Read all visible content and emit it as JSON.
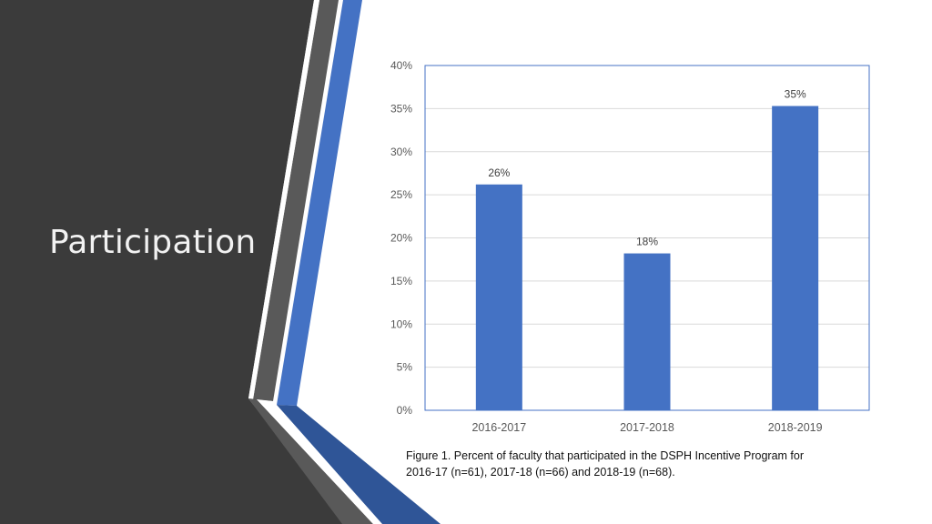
{
  "slide": {
    "title": "Participation"
  },
  "colors": {
    "panel": "#3b3b3b",
    "accent_blue": "#4472c4",
    "dark_blue": "#2f5597",
    "grey_stripe": "#595959",
    "bar": "#4472c4",
    "gridline": "#d9d9d9",
    "plot_border": "#4472c4"
  },
  "chart_data": {
    "type": "bar",
    "categories": [
      "2016-2017",
      "2017-2018",
      "2018-2019"
    ],
    "values": [
      26.2,
      18.2,
      35.3
    ],
    "data_labels": [
      "26%",
      "18%",
      "35%"
    ],
    "ylim": [
      0,
      40
    ],
    "yticks": [
      "0%",
      "5%",
      "10%",
      "15%",
      "20%",
      "25%",
      "30%",
      "35%",
      "40%"
    ],
    "ytick_values": [
      0,
      5,
      10,
      15,
      20,
      25,
      30,
      35,
      40
    ],
    "grid": true,
    "title": "",
    "xlabel": "",
    "ylabel": ""
  },
  "caption": {
    "line1": "Figure 1.  Percent of faculty that participated in the DSPH Incentive Program for",
    "line2": "2016-17 (n=61), 2017-18 (n=66) and 2018-19 (n=68)."
  }
}
